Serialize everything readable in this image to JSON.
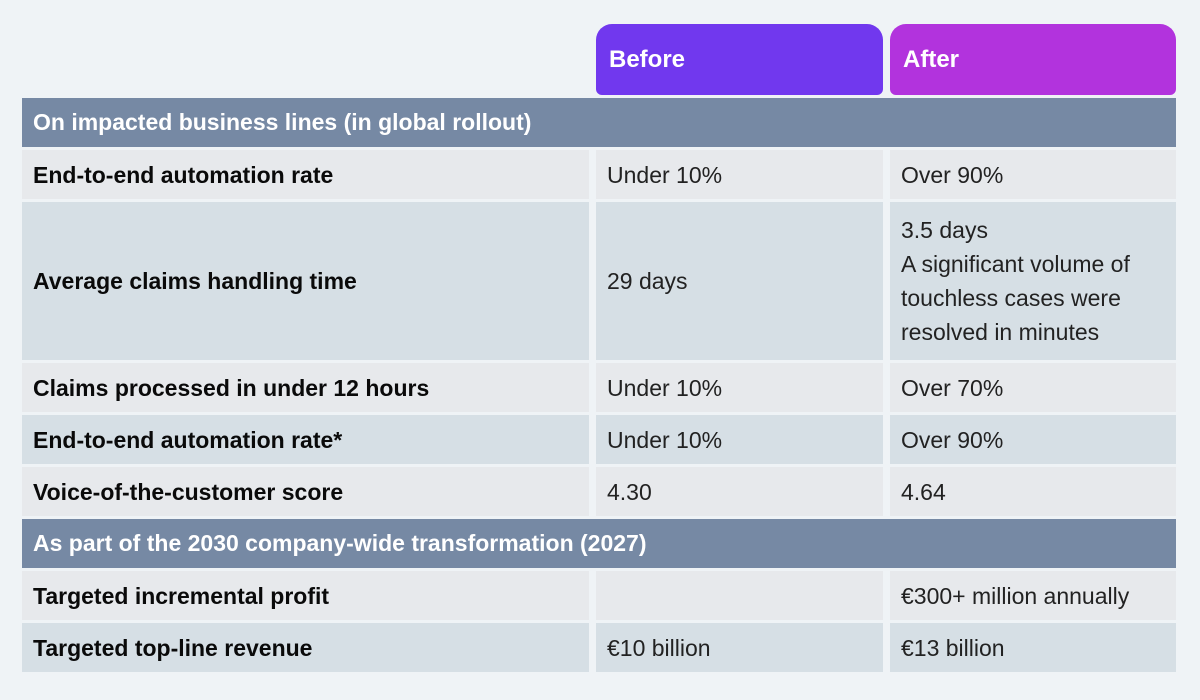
{
  "page_background": "#eff3f6",
  "columns": {
    "before": {
      "label": "Before",
      "color": "#7138ee"
    },
    "after": {
      "label": "After",
      "color": "#b233dd"
    }
  },
  "table": {
    "section_header_color": "#7689a4",
    "row_colors": {
      "light_gray": "#e7e9ec",
      "light_blue": "#d6dfe5"
    },
    "sections": [
      {
        "title": "On impacted business lines (in global rollout)",
        "rows": [
          {
            "label": "End-to-end automation rate",
            "before": "Under 10%",
            "after": "Over 90%"
          },
          {
            "label": "Average claims handling time",
            "before": "29 days",
            "after": "3.5 days\nA significant volume of\ntouchless cases were\nresolved in minutes"
          },
          {
            "label": "Claims processed in under 12 hours",
            "before": "Under 10%",
            "after": "Over 70%"
          },
          {
            "label": "End-to-end automation rate*",
            "before": "Under 10%",
            "after": "Over 90%"
          },
          {
            "label": "Voice-of-the-customer score",
            "before": "4.30",
            "after": "4.64"
          }
        ]
      },
      {
        "title": "As part of the 2030 company-wide transformation (2027)",
        "rows": [
          {
            "label": "Targeted incremental profit",
            "before": "",
            "after": "€300+ million annually"
          },
          {
            "label": "Targeted top-line revenue",
            "before": "€10 billion",
            "after": "€13 billion"
          }
        ]
      }
    ]
  },
  "chart_data": {
    "type": "table",
    "column_headers": [
      "",
      "Before",
      "After"
    ],
    "sections": [
      {
        "header": "On impacted business lines (in global rollout)",
        "rows": [
          [
            "End-to-end automation rate",
            "Under 10%",
            "Over 90%"
          ],
          [
            "Average claims handling time",
            "29 days",
            "3.5 days — A significant volume of touchless cases were resolved in minutes"
          ],
          [
            "Claims processed in under 12 hours",
            "Under 10%",
            "Over 70%"
          ],
          [
            "End-to-end automation rate*",
            "Under 10%",
            "Over 90%"
          ],
          [
            "Voice-of-the-customer score",
            "4.30",
            "4.64"
          ]
        ]
      },
      {
        "header": "As part of the 2030 company-wide transformation (2027)",
        "rows": [
          [
            "Targeted incremental profit",
            "",
            "€300+ million annually"
          ],
          [
            "Targeted top-line revenue",
            "€10 billion",
            "€13 billion"
          ]
        ]
      }
    ]
  }
}
